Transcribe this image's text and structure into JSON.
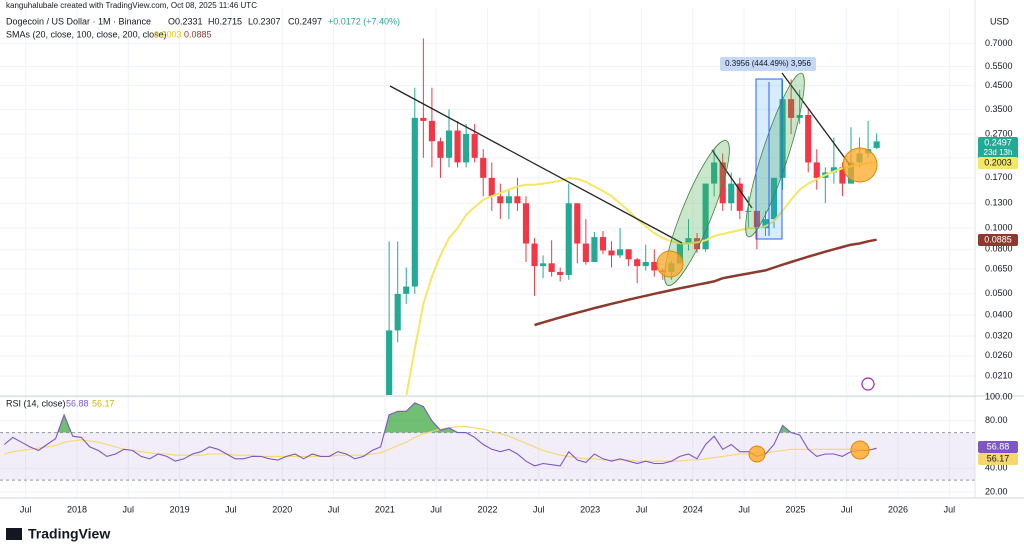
{
  "header": "kanguhalubale created with TradingView.com, Oct 08, 2025 11:46 UTC",
  "footer": "TradingView",
  "chart_data": [
    {
      "type": "candlestick",
      "title": "Dogecoin / US Dollar · 1M · Binance",
      "ohlc_legend": [
        "O0.2331",
        "H0.2715",
        "L0.2307",
        "C0.2497",
        "+0.0172 (+7.40%)"
      ],
      "sma_legend": "SMAs (20, close, 100, close, 200, close)",
      "currency": "USD",
      "log_scale": true,
      "grid": true,
      "up_color": "#22ab94",
      "down_color": "#f23645",
      "x": [
        "2021-01",
        "2021-02",
        "2021-03",
        "2021-04",
        "2021-05",
        "2021-06",
        "2021-07",
        "2021-08",
        "2021-09",
        "2021-10",
        "2021-11",
        "2021-12",
        "2022-01",
        "2022-02",
        "2022-03",
        "2022-04",
        "2022-05",
        "2022-06",
        "2022-07",
        "2022-08",
        "2022-09",
        "2022-10",
        "2022-11",
        "2022-12",
        "2023-01",
        "2023-02",
        "2023-03",
        "2023-04",
        "2023-05",
        "2023-06",
        "2023-07",
        "2023-08",
        "2023-09",
        "2023-10",
        "2023-11",
        "2023-12",
        "2024-01",
        "2024-02",
        "2024-03",
        "2024-04",
        "2024-05",
        "2024-06",
        "2024-07",
        "2024-08",
        "2024-09",
        "2024-10",
        "2024-11",
        "2024-12",
        "2025-01",
        "2025-02",
        "2025-03",
        "2025-04",
        "2025-05",
        "2025-06",
        "2025-07",
        "2025-08",
        "2025-09",
        "2025-10"
      ],
      "open": [
        0.0047,
        0.034,
        0.05,
        0.054,
        0.32,
        0.31,
        0.25,
        0.21,
        0.28,
        0.2,
        0.27,
        0.21,
        0.17,
        0.14,
        0.13,
        0.14,
        0.13,
        0.085,
        0.067,
        0.069,
        0.063,
        0.061,
        0.13,
        0.085,
        0.07,
        0.091,
        0.079,
        0.075,
        0.08,
        0.072,
        0.067,
        0.07,
        0.064,
        0.063,
        0.069,
        0.085,
        0.09,
        0.08,
        0.16,
        0.2,
        0.13,
        0.16,
        0.12,
        0.12,
        0.1,
        0.11,
        0.17,
        0.39,
        0.32,
        0.33,
        0.2,
        0.17,
        0.18,
        0.19,
        0.16,
        0.2,
        0.22,
        0.2331
      ],
      "high": [
        0.087,
        0.087,
        0.066,
        0.44,
        0.74,
        0.44,
        0.26,
        0.35,
        0.31,
        0.3,
        0.3,
        0.23,
        0.2,
        0.16,
        0.15,
        0.17,
        0.14,
        0.09,
        0.075,
        0.088,
        0.066,
        0.16,
        0.13,
        0.11,
        0.096,
        0.097,
        0.087,
        0.1,
        0.08,
        0.073,
        0.084,
        0.08,
        0.065,
        0.071,
        0.087,
        0.11,
        0.095,
        0.16,
        0.23,
        0.22,
        0.18,
        0.17,
        0.14,
        0.12,
        0.12,
        0.17,
        0.48,
        0.48,
        0.43,
        0.35,
        0.23,
        0.19,
        0.26,
        0.2,
        0.29,
        0.26,
        0.31,
        0.2715
      ],
      "low": [
        0.0047,
        0.03,
        0.045,
        0.05,
        0.21,
        0.19,
        0.17,
        0.19,
        0.19,
        0.19,
        0.2,
        0.14,
        0.12,
        0.11,
        0.11,
        0.12,
        0.07,
        0.049,
        0.059,
        0.06,
        0.057,
        0.058,
        0.069,
        0.068,
        0.07,
        0.076,
        0.066,
        0.073,
        0.067,
        0.056,
        0.064,
        0.06,
        0.058,
        0.058,
        0.068,
        0.079,
        0.077,
        0.078,
        0.14,
        0.12,
        0.12,
        0.11,
        0.1,
        0.08,
        0.092,
        0.1,
        0.15,
        0.27,
        0.3,
        0.18,
        0.15,
        0.13,
        0.16,
        0.14,
        0.16,
        0.19,
        0.21,
        0.2307
      ],
      "close": [
        0.034,
        0.05,
        0.054,
        0.32,
        0.31,
        0.25,
        0.21,
        0.28,
        0.2,
        0.27,
        0.21,
        0.17,
        0.14,
        0.13,
        0.14,
        0.13,
        0.085,
        0.067,
        0.069,
        0.063,
        0.061,
        0.13,
        0.085,
        0.07,
        0.091,
        0.079,
        0.075,
        0.08,
        0.072,
        0.067,
        0.07,
        0.064,
        0.063,
        0.069,
        0.085,
        0.09,
        0.08,
        0.16,
        0.2,
        0.13,
        0.16,
        0.12,
        0.12,
        0.1,
        0.11,
        0.17,
        0.39,
        0.32,
        0.33,
        0.2,
        0.17,
        0.18,
        0.19,
        0.16,
        0.2,
        0.22,
        0.23,
        0.2497
      ],
      "series": [
        {
          "color": "#f5e663",
          "values": [
            null,
            null,
            0.017,
            0.028,
            0.045,
            0.06,
            0.075,
            0.09,
            0.1,
            0.115,
            0.125,
            0.135,
            0.14,
            0.145,
            0.15,
            0.155,
            0.158,
            0.158,
            0.16,
            0.162,
            0.165,
            0.17,
            0.168,
            0.163,
            0.155,
            0.148,
            0.14,
            0.13,
            0.12,
            0.11,
            0.102,
            0.095,
            0.09,
            0.087,
            0.085,
            0.085,
            0.086,
            0.088,
            0.092,
            0.094,
            0.096,
            0.098,
            0.1,
            0.1,
            0.102,
            0.108,
            0.12,
            0.135,
            0.15,
            0.16,
            0.168,
            0.175,
            0.182,
            0.188,
            0.192,
            0.196,
            0.199,
            0.2003
          ]
        },
        {
          "color": "#8d3a2e",
          "values": [
            null,
            null,
            null,
            null,
            null,
            null,
            null,
            null,
            null,
            null,
            null,
            null,
            null,
            null,
            null,
            null,
            null,
            0.036,
            0.037,
            0.038,
            0.039,
            0.04,
            0.041,
            0.042,
            0.043,
            0.044,
            0.045,
            0.046,
            0.047,
            0.048,
            0.049,
            0.05,
            0.051,
            0.052,
            0.053,
            0.054,
            0.055,
            0.056,
            0.057,
            0.059,
            0.06,
            0.061,
            0.062,
            0.063,
            0.064,
            0.066,
            0.068,
            0.07,
            0.072,
            0.074,
            0.076,
            0.078,
            0.08,
            0.082,
            0.084,
            0.085,
            0.087,
            0.0885
          ]
        }
      ],
      "xlim": [
        "2017-04",
        "2026-10"
      ],
      "xticks": [
        {
          "value": "2017-07",
          "label": "Jul"
        },
        {
          "value": "2018-01",
          "label": "2018"
        },
        {
          "value": "2018-07",
          "label": "Jul"
        },
        {
          "value": "2019-01",
          "label": "2019"
        },
        {
          "value": "2019-07",
          "label": "Jul"
        },
        {
          "value": "2020-01",
          "label": "2020"
        },
        {
          "value": "2020-07",
          "label": "Jul"
        },
        {
          "value": "2021-01",
          "label": "2021"
        },
        {
          "value": "2021-07",
          "label": "Jul"
        },
        {
          "value": "2022-01",
          "label": "2022"
        },
        {
          "value": "2022-07",
          "label": "Jul"
        },
        {
          "value": "2023-01",
          "label": "2023"
        },
        {
          "value": "2023-07",
          "label": "Jul"
        },
        {
          "value": "2024-01",
          "label": "2024"
        },
        {
          "value": "2024-07",
          "label": "Jul"
        },
        {
          "value": "2025-01",
          "label": "2025"
        },
        {
          "value": "2025-07",
          "label": "Jul"
        },
        {
          "value": "2026-01",
          "label": "2026"
        },
        {
          "value": "2026-07",
          "label": "Jul"
        }
      ],
      "ylim": [
        0.0172,
        1.02
      ],
      "yticks": [
        {
          "value": 0.7,
          "label": "0.7000"
        },
        {
          "value": 0.55,
          "label": "0.5500"
        },
        {
          "value": 0.45,
          "label": "0.4500"
        },
        {
          "value": 0.35,
          "label": "0.3500"
        },
        {
          "value": 0.27,
          "label": "0.2700"
        },
        {
          "value": 0.21,
          "label": "0.2100"
        },
        {
          "value": 0.17,
          "label": "0.1700"
        },
        {
          "value": 0.13,
          "label": "0.1300"
        },
        {
          "value": 0.1,
          "label": "0.1000"
        },
        {
          "value": 0.08,
          "label": "0.0800"
        },
        {
          "value": 0.065,
          "label": "0.0650"
        },
        {
          "value": 0.05,
          "label": "0.0500"
        },
        {
          "value": 0.04,
          "label": "0.0400"
        },
        {
          "value": 0.032,
          "label": "0.0320"
        },
        {
          "value": 0.026,
          "label": "0.0260"
        },
        {
          "value": 0.021,
          "label": "0.0210"
        }
      ],
      "annotations": {
        "range": "0.3956 (444.49%) 3,956",
        "countdown": "23d 13h"
      }
    },
    {
      "type": "line",
      "title": "RSI (14, close)",
      "x": [
        "2017-04",
        "2017-05",
        "2017-06",
        "2017-07",
        "2017-08",
        "2017-09",
        "2017-10",
        "2017-11",
        "2017-12",
        "2018-01",
        "2018-02",
        "2018-03",
        "2018-04",
        "2018-05",
        "2018-06",
        "2018-07",
        "2018-08",
        "2018-09",
        "2018-10",
        "2018-11",
        "2018-12",
        "2019-01",
        "2019-02",
        "2019-03",
        "2019-04",
        "2019-05",
        "2019-06",
        "2019-07",
        "2019-08",
        "2019-09",
        "2019-10",
        "2019-11",
        "2019-12",
        "2020-01",
        "2020-02",
        "2020-03",
        "2020-04",
        "2020-05",
        "2020-06",
        "2020-07",
        "2020-08",
        "2020-09",
        "2020-10",
        "2020-11",
        "2020-12",
        "2021-01",
        "2021-02",
        "2021-03",
        "2021-04",
        "2021-05",
        "2021-06",
        "2021-07",
        "2021-08",
        "2021-09",
        "2021-10",
        "2021-11",
        "2021-12",
        "2022-01",
        "2022-02",
        "2022-03",
        "2022-04",
        "2022-05",
        "2022-06",
        "2022-07",
        "2022-08",
        "2022-09",
        "2022-10",
        "2022-11",
        "2022-12",
        "2023-01",
        "2023-02",
        "2023-03",
        "2023-04",
        "2023-05",
        "2023-06",
        "2023-07",
        "2023-08",
        "2023-09",
        "2023-10",
        "2023-11",
        "2023-12",
        "2024-01",
        "2024-02",
        "2024-03",
        "2024-04",
        "2024-05",
        "2024-06",
        "2024-07",
        "2024-08",
        "2024-09",
        "2024-10",
        "2024-11",
        "2024-12",
        "2025-01",
        "2025-02",
        "2025-03",
        "2025-04",
        "2025-05",
        "2025-06",
        "2025-07",
        "2025-08",
        "2025-09",
        "2025-10"
      ],
      "series": [
        {
          "color": "#7e57c2",
          "values": [
            60,
            66,
            62,
            58,
            55,
            60,
            65,
            85,
            67,
            66,
            58,
            55,
            50,
            52,
            56,
            55,
            50,
            48,
            52,
            50,
            46,
            48,
            52,
            54,
            58,
            56,
            52,
            48,
            48,
            50,
            50,
            48,
            47,
            50,
            52,
            48,
            52,
            50,
            50,
            54,
            52,
            48,
            50,
            55,
            58,
            85,
            88,
            88,
            95,
            92,
            80,
            72,
            74,
            70,
            70,
            66,
            60,
            56,
            54,
            56,
            52,
            46,
            42,
            44,
            43,
            42,
            54,
            47,
            45,
            52,
            48,
            46,
            48,
            46,
            44,
            46,
            44,
            44,
            46,
            50,
            52,
            48,
            60,
            67,
            56,
            60,
            54,
            54,
            50,
            52,
            60,
            76,
            70,
            68,
            56,
            50,
            52,
            52,
            50,
            54,
            55,
            55,
            56.88
          ]
        },
        {
          "color": "#f5d76e",
          "values": [
            52,
            54,
            55,
            56,
            57,
            58,
            59,
            62,
            63,
            64,
            63,
            62,
            60,
            58,
            56,
            55,
            54,
            53,
            52,
            52,
            51,
            51,
            51,
            51,
            52,
            52,
            52,
            51,
            51,
            51,
            50,
            50,
            50,
            50,
            50,
            50,
            50,
            50,
            50,
            51,
            51,
            51,
            51,
            52,
            53,
            56,
            59,
            62,
            66,
            69,
            71,
            73,
            74,
            75,
            75,
            74,
            73,
            71,
            69,
            67,
            64,
            61,
            58,
            55,
            53,
            51,
            50,
            49,
            48,
            48,
            47,
            47,
            47,
            47,
            46,
            46,
            46,
            46,
            46,
            46,
            47,
            47,
            48,
            49,
            50,
            51,
            52,
            52,
            53,
            53,
            54,
            55,
            56,
            56,
            56,
            56,
            56,
            56,
            56,
            56,
            56,
            56,
            56.17
          ]
        }
      ],
      "ylim": [
        15,
        100
      ],
      "yticks": [
        {
          "value": 100,
          "label": "100.00"
        },
        {
          "value": 80,
          "label": "80.00"
        },
        {
          "value": 40,
          "label": "40.00"
        },
        {
          "value": 20,
          "label": "20.00"
        }
      ],
      "bands": [
        30,
        70
      ],
      "overbought_fill": "#4caf50"
    }
  ]
}
